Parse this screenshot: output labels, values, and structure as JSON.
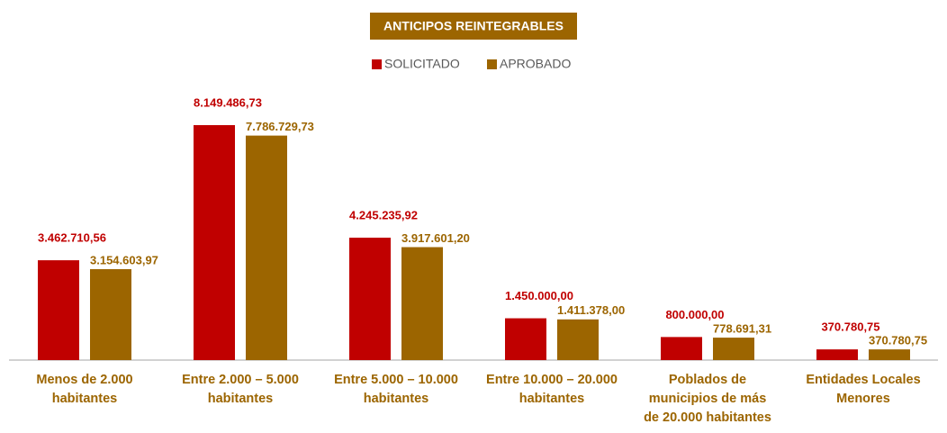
{
  "chart_data": {
    "type": "bar",
    "title": "ANTICIPOS REINTEGRABLES",
    "categories": [
      "Menos de 2.000 habitantes",
      "Entre 2.000 – 5.000 habitantes",
      "Entre 5.000 – 10.000 habitantes",
      "Entre 10.000 – 20.000 habitantes",
      "Poblados de municipios de más de 20.000 habitantes",
      "Entidades Locales Menores"
    ],
    "series": [
      {
        "name": "SOLICITADO",
        "color": "#c00000",
        "values": [
          3462710.56,
          8149486.73,
          4245235.92,
          1450000.0,
          800000.0,
          370780.75
        ],
        "value_labels": [
          "3.462.710,56",
          "8.149.486,73",
          "4.245.235,92",
          "1.450.000,00",
          "800.000,00",
          "370.780,75"
        ]
      },
      {
        "name": "APROBADO",
        "color": "#9c6500",
        "values": [
          3154603.97,
          7786729.73,
          3917601.2,
          1411378.0,
          778691.31,
          370780.75
        ],
        "value_labels": [
          "3.154.603,97",
          "7.786.729,73",
          "3.917.601,20",
          "1.411.378,00",
          "778.691,31",
          "370.780,75"
        ]
      }
    ],
    "legend": "top"
  }
}
